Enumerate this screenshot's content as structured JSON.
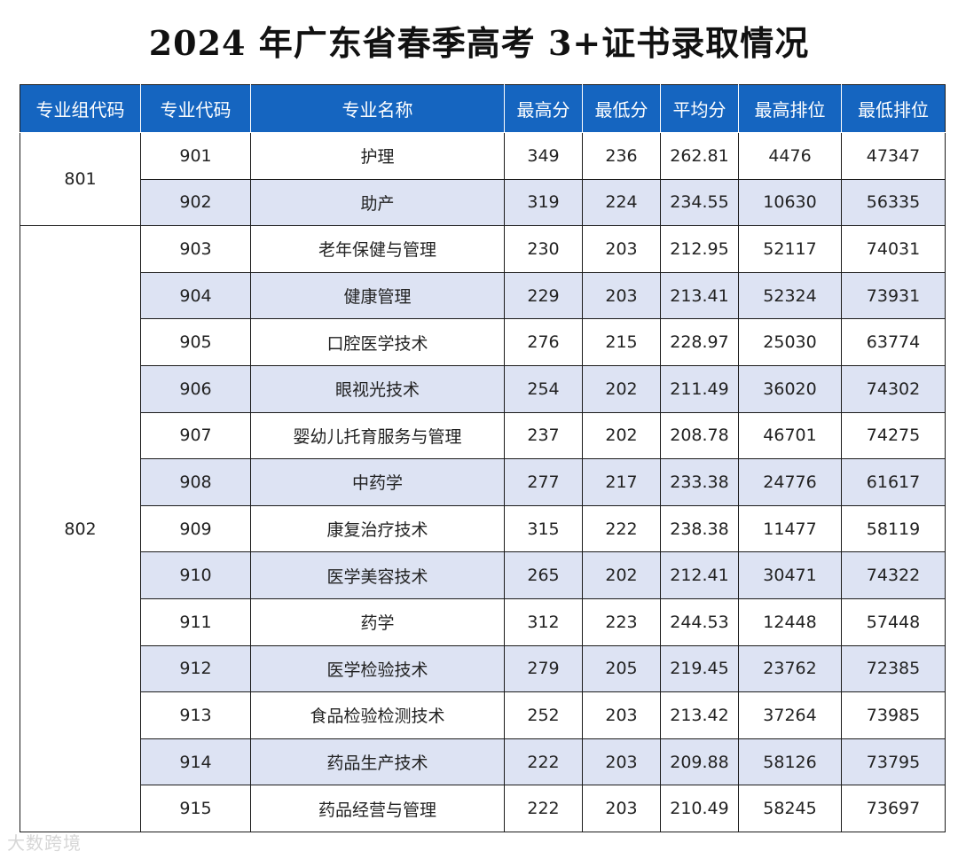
{
  "title": "2024 年广东省春季高考 3+证书录取情况",
  "table": {
    "headers": [
      "专业组代码",
      "专业代码",
      "专业名称",
      "最高分",
      "最低分",
      "平均分",
      "最高排位",
      "最低排位"
    ],
    "groups": [
      {
        "code": "801",
        "rows": [
          [
            "901",
            "护理",
            "349",
            "236",
            "262.81",
            "4476",
            "47347"
          ],
          [
            "902",
            "助产",
            "319",
            "224",
            "234.55",
            "10630",
            "56335"
          ]
        ]
      },
      {
        "code": "802",
        "rows": [
          [
            "903",
            "老年保健与管理",
            "230",
            "203",
            "212.95",
            "52117",
            "74031"
          ],
          [
            "904",
            "健康管理",
            "229",
            "203",
            "213.41",
            "52324",
            "73931"
          ],
          [
            "905",
            "口腔医学技术",
            "276",
            "215",
            "228.97",
            "25030",
            "63774"
          ],
          [
            "906",
            "眼视光技术",
            "254",
            "202",
            "211.49",
            "36020",
            "74302"
          ],
          [
            "907",
            "婴幼儿托育服务与管理",
            "237",
            "202",
            "208.78",
            "46701",
            "74275"
          ],
          [
            "908",
            "中药学",
            "277",
            "217",
            "233.38",
            "24776",
            "61617"
          ],
          [
            "909",
            "康复治疗技术",
            "315",
            "222",
            "238.38",
            "11477",
            "58119"
          ],
          [
            "910",
            "医学美容技术",
            "265",
            "202",
            "212.41",
            "30471",
            "74322"
          ],
          [
            "911",
            "药学",
            "312",
            "223",
            "244.53",
            "12448",
            "57448"
          ],
          [
            "912",
            "医学检验技术",
            "279",
            "205",
            "219.45",
            "23762",
            "72385"
          ],
          [
            "913",
            "食品检验检测技术",
            "252",
            "203",
            "213.42",
            "37264",
            "73985"
          ],
          [
            "914",
            "药品生产技术",
            "222",
            "203",
            "209.88",
            "58126",
            "73795"
          ],
          [
            "915",
            "药品经营与管理",
            "222",
            "203",
            "210.49",
            "58245",
            "73697"
          ]
        ]
      }
    ]
  },
  "watermark": "大数跨境",
  "colors": {
    "header_bg": "#1565c0",
    "header_text": "#ffffff",
    "alt_row_bg": "#dde3f3"
  }
}
